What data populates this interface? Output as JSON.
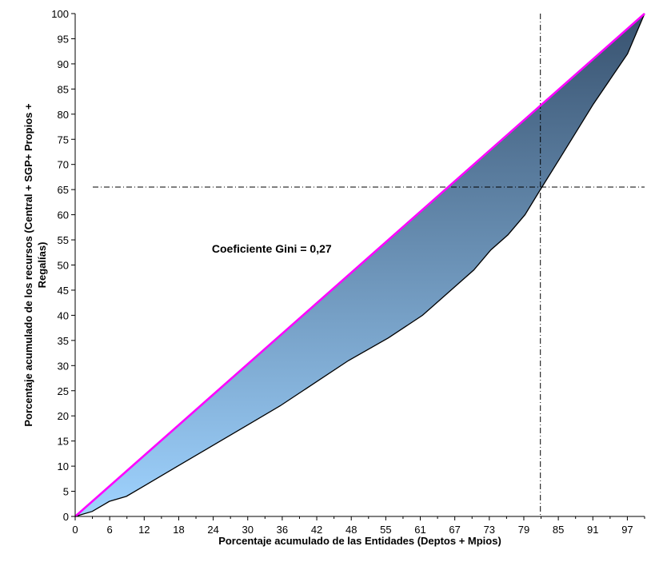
{
  "chart_data": {
    "type": "area",
    "title": "",
    "xlabel": "Porcentaje acumulado de las Entidades (Deptos + Mpios)",
    "ylabel": "Porcentaje acumulado de los recursos (Central + SGP+ Propios + Regalías)",
    "ylabel_lines": [
      "Porcentaje acumulado de los recursos (Central + SGP+ Propios +",
      "Regalías)"
    ],
    "xlim": [
      0,
      100
    ],
    "ylim": [
      0,
      100
    ],
    "x_tick_labels": [
      "0",
      "6",
      "12",
      "18",
      "24",
      "30",
      "36",
      "42",
      "48",
      "55",
      "61",
      "67",
      "73",
      "79",
      "85",
      "91",
      "97"
    ],
    "y_ticks": [
      0,
      5,
      10,
      15,
      20,
      25,
      30,
      35,
      40,
      45,
      50,
      55,
      60,
      65,
      70,
      75,
      80,
      85,
      90,
      95,
      100
    ],
    "series": [
      {
        "name": "",
        "role": "equality-line",
        "color": "#ff00ff",
        "x": [
          0,
          100
        ],
        "y": [
          0,
          100
        ]
      },
      {
        "name": "",
        "role": "lorenz-curve",
        "color": "#000000",
        "x": [
          0,
          3,
          6,
          9,
          12,
          18,
          24,
          30,
          36,
          42,
          48,
          55,
          61,
          67,
          70,
          73,
          76,
          79,
          81.7,
          85,
          91,
          97,
          100
        ],
        "y": [
          0,
          1,
          3,
          4,
          6,
          10,
          14,
          18,
          22,
          26.5,
          31,
          35.5,
          40,
          46,
          49,
          53,
          56,
          60,
          65,
          71,
          82,
          92,
          100
        ]
      }
    ],
    "reference_lines": {
      "x": 81.7,
      "y": 65.5,
      "style": "dash-dot"
    },
    "fill": {
      "between": "equality-line and lorenz-curve",
      "gradient_top": "#38526f",
      "gradient_bottom": "#9fd3ff"
    },
    "grid": false,
    "legend": "none",
    "annotations": [
      {
        "text": "Coeficiente Gini = 0,27",
        "x": 24,
        "y": 52.5
      }
    ]
  }
}
